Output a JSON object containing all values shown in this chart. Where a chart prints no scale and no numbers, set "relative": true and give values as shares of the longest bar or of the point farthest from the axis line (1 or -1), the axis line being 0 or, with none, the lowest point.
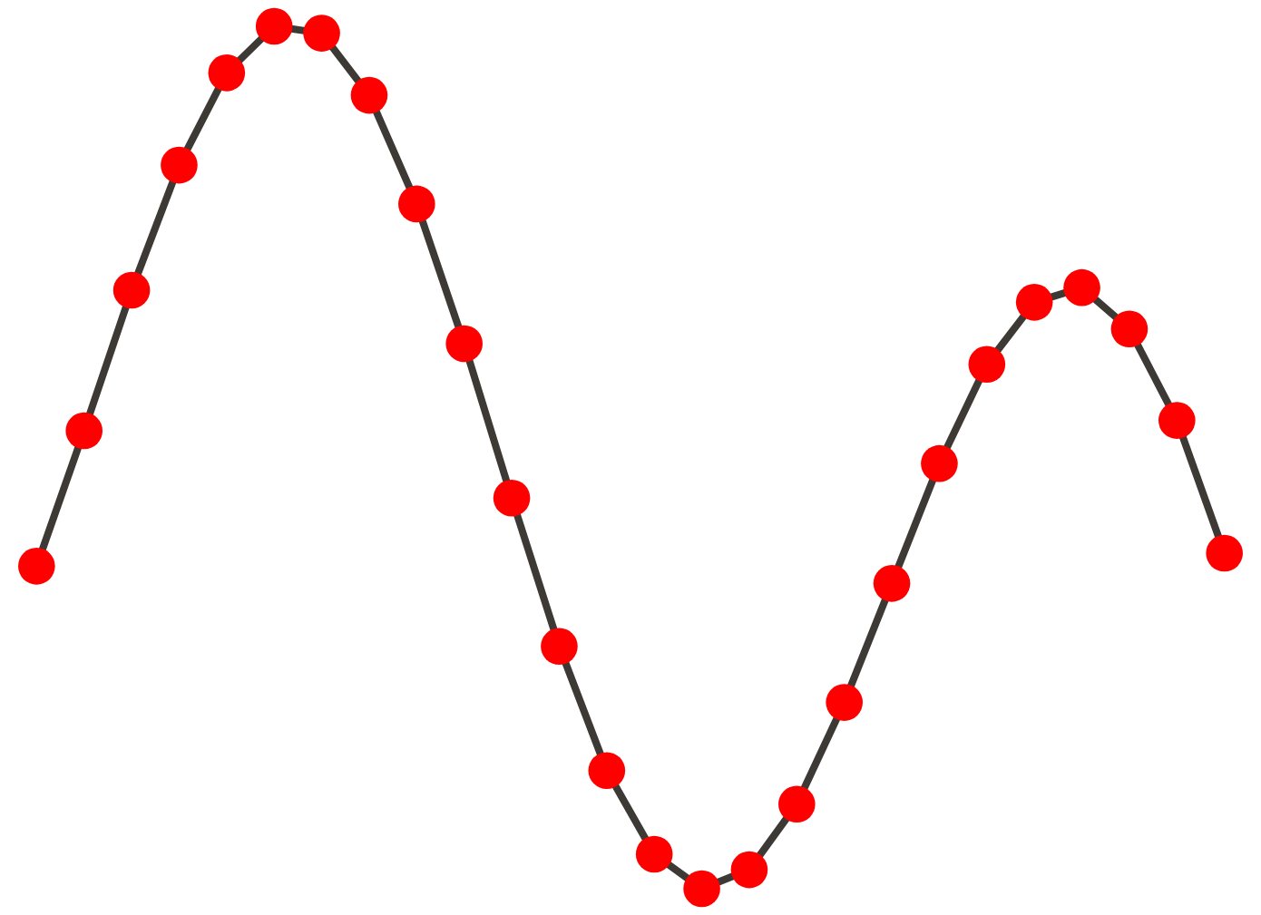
{
  "chart_data": {
    "type": "line",
    "relative": true,
    "marker": "circle",
    "line_style": "solid",
    "categories": [
      null,
      null,
      null,
      null,
      null,
      null,
      null,
      null,
      null,
      null,
      null,
      null,
      null,
      null,
      null,
      null,
      null,
      null,
      null,
      null,
      null,
      null,
      null,
      null,
      null,
      null
    ],
    "series": [
      {
        "color": "#3d3935",
        "colors": [
          "#ff0000",
          "#ff0000",
          "#ff0000",
          "#ff0000",
          "#ff0000",
          "#ff0000",
          "#ff0000",
          "#ff0000",
          "#ff0000",
          "#ff0000",
          "#ff0000",
          "#ff0000",
          "#ff0000",
          "#ff0000",
          "#ff0000",
          "#ff0000",
          "#ff0000",
          "#ff0000",
          "#ff0000",
          "#ff0000",
          "#ff0000",
          "#ff0000",
          "#ff0000",
          "#ff0000",
          "#ff0000",
          "#ff0000"
        ],
        "values": [
          0.374,
          0.531,
          0.694,
          0.839,
          0.946,
          1,
          0.992,
          0.92,
          0.794,
          0.632,
          0.453,
          0.281,
          0.137,
          0.04,
          0,
          0.022,
          0.098,
          0.216,
          0.354,
          0.493,
          0.608,
          0.68,
          0.697,
          0.649,
          0.543,
          0.389
        ]
      }
    ]
  }
}
